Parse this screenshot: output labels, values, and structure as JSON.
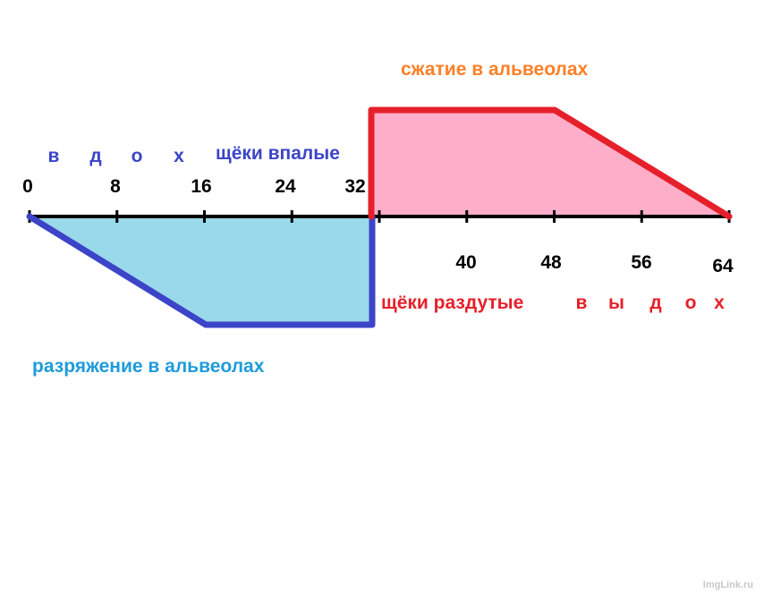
{
  "colors": {
    "axis": "#000000",
    "inhale_outline": "#3c44c8",
    "inhale_fill": "#99d9ea",
    "exhale_outline": "#e6202a",
    "exhale_fill": "#ffaec9",
    "compression_text": "#ff7f27",
    "rarefaction_text": "#1e9bdc",
    "inhale_text": "#3c44c8",
    "exhale_text": "#e6202a"
  },
  "axis": {
    "ticks_above": [
      "0",
      "8",
      "16",
      "24",
      "32"
    ],
    "ticks_below": [
      "40",
      "48",
      "56",
      "64"
    ]
  },
  "labels": {
    "compression": "сжатие в альвеолах",
    "rarefaction": "разряжение в альвеолах",
    "cheeks_sunken": "щёки впалые",
    "cheeks_puffed": "щёки раздутые",
    "inhale_letters": [
      "в",
      "д",
      "о",
      "х"
    ],
    "exhale_letters": [
      "в",
      "ы",
      "д",
      "о",
      "х"
    ]
  },
  "chart_data": {
    "type": "area",
    "x_ticks": [
      0,
      8,
      16,
      24,
      32,
      40,
      48,
      56,
      64
    ],
    "series": [
      {
        "points": [
          [
            0,
            0
          ],
          [
            16,
            -1
          ],
          [
            32,
            -1
          ],
          [
            32,
            0
          ]
        ]
      },
      {
        "points": [
          [
            32,
            0
          ],
          [
            32,
            1
          ],
          [
            48,
            1
          ],
          [
            64,
            0
          ]
        ]
      }
    ]
  },
  "watermark": "ImgLink.ru"
}
